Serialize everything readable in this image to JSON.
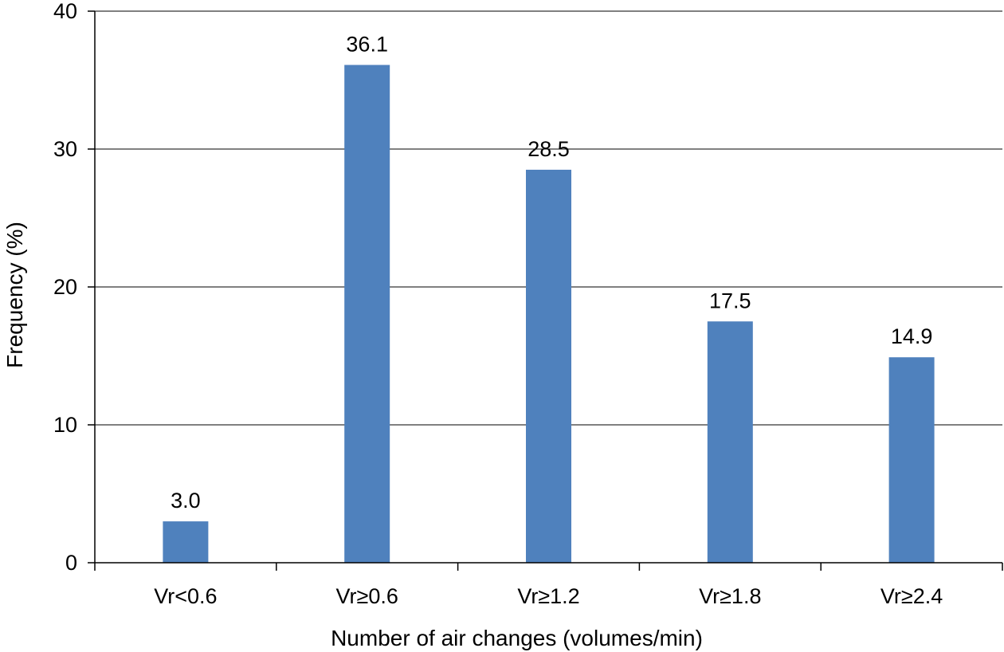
{
  "chart_data": {
    "type": "bar",
    "title": "",
    "xlabel": "Number of air changes (volumes/min)",
    "ylabel": "Frequency (%)",
    "categories": [
      "Vr<0.6",
      "Vr≥0.6",
      "Vr≥1.2",
      "Vr≥1.8",
      "Vr≥2.4"
    ],
    "values": [
      3.0,
      36.1,
      28.5,
      17.5,
      14.9
    ],
    "data_labels": [
      "3.0",
      "36.1",
      "28.5",
      "17.5",
      "14.9"
    ],
    "ylim": [
      0,
      40
    ],
    "yticks": [
      0,
      10,
      20,
      30,
      40
    ],
    "grid": true,
    "legend": "none",
    "bar_color": "#4F81BD"
  }
}
